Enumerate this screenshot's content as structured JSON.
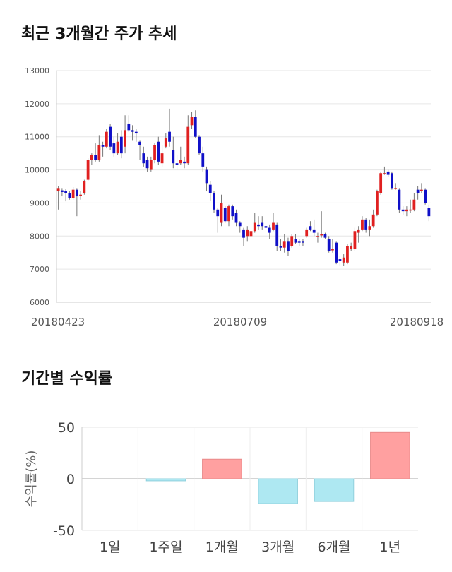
{
  "section1": {
    "title": "최근 3개월간 주가 추세"
  },
  "section2": {
    "title": "기간별 수익률"
  },
  "chart_data": [
    {
      "type": "candlestick",
      "title": "최근 3개월간 주가 추세",
      "ylim": [
        6000,
        13000
      ],
      "y_ticks": [
        "13000",
        "12000",
        "11000",
        "10000",
        "9000",
        "8000",
        "7000",
        "6000"
      ],
      "x_tick_labels": [
        "20180423",
        "20180709",
        "20180918"
      ],
      "grid": true,
      "colors": {
        "up": "#e02020",
        "down": "#1010c8",
        "wick": "#777777"
      },
      "candles": [
        {
          "o": 9350,
          "c": 9450,
          "h": 9520,
          "l": 8800
        },
        {
          "o": 9380,
          "c": 9330,
          "h": 9450,
          "l": 9200
        },
        {
          "o": 9350,
          "c": 9300,
          "h": 9420,
          "l": 9050
        },
        {
          "o": 9300,
          "c": 9150,
          "h": 9350,
          "l": 9100
        },
        {
          "o": 9150,
          "c": 9400,
          "h": 9480,
          "l": 9100
        },
        {
          "o": 9400,
          "c": 9200,
          "h": 9450,
          "l": 8600
        },
        {
          "o": 9250,
          "c": 9250,
          "h": 9350,
          "l": 9100
        },
        {
          "o": 9300,
          "c": 9650,
          "h": 9700,
          "l": 9250
        },
        {
          "o": 9700,
          "c": 10300,
          "h": 10350,
          "l": 9650
        },
        {
          "o": 10300,
          "c": 10450,
          "h": 10500,
          "l": 10150
        },
        {
          "o": 10450,
          "c": 10300,
          "h": 10800,
          "l": 10250
        },
        {
          "o": 10300,
          "c": 10750,
          "h": 11050,
          "l": 10250
        },
        {
          "o": 10750,
          "c": 10700,
          "h": 10850,
          "l": 10400
        },
        {
          "o": 10700,
          "c": 11150,
          "h": 11250,
          "l": 10650
        },
        {
          "o": 11300,
          "c": 10700,
          "h": 11400,
          "l": 10600
        },
        {
          "o": 10800,
          "c": 10500,
          "h": 11000,
          "l": 10400
        },
        {
          "o": 10500,
          "c": 10850,
          "h": 11100,
          "l": 10450
        },
        {
          "o": 11000,
          "c": 10500,
          "h": 11200,
          "l": 10350
        },
        {
          "o": 10700,
          "c": 11200,
          "h": 11650,
          "l": 10500
        },
        {
          "o": 11400,
          "c": 11200,
          "h": 11650,
          "l": 11150
        },
        {
          "o": 11200,
          "c": 11150,
          "h": 11350,
          "l": 10900
        },
        {
          "o": 11150,
          "c": 11100,
          "h": 11250,
          "l": 10850
        },
        {
          "o": 10850,
          "c": 10750,
          "h": 10900,
          "l": 10300
        },
        {
          "o": 10500,
          "c": 10200,
          "h": 10700,
          "l": 10100
        },
        {
          "o": 10300,
          "c": 10050,
          "h": 10400,
          "l": 9950
        },
        {
          "o": 10000,
          "c": 10300,
          "h": 10400,
          "l": 9950
        },
        {
          "o": 10300,
          "c": 10750,
          "h": 10800,
          "l": 10200
        },
        {
          "o": 10850,
          "c": 10250,
          "h": 11000,
          "l": 10150
        },
        {
          "o": 10200,
          "c": 10500,
          "h": 10750,
          "l": 10100
        },
        {
          "o": 10700,
          "c": 10950,
          "h": 11100,
          "l": 10650
        },
        {
          "o": 11150,
          "c": 10850,
          "h": 11850,
          "l": 10700
        },
        {
          "o": 10600,
          "c": 10200,
          "h": 11000,
          "l": 10050
        },
        {
          "o": 10200,
          "c": 10150,
          "h": 10450,
          "l": 10000
        },
        {
          "o": 10200,
          "c": 10300,
          "h": 10700,
          "l": 10150
        },
        {
          "o": 10250,
          "c": 10200,
          "h": 10400,
          "l": 10050
        },
        {
          "o": 10200,
          "c": 11300,
          "h": 11650,
          "l": 10150
        },
        {
          "o": 11350,
          "c": 11600,
          "h": 11750,
          "l": 11250
        },
        {
          "o": 11600,
          "c": 11000,
          "h": 11800,
          "l": 10950
        },
        {
          "o": 11000,
          "c": 10500,
          "h": 11050,
          "l": 10450
        },
        {
          "o": 10500,
          "c": 10100,
          "h": 10700,
          "l": 9950
        },
        {
          "o": 10000,
          "c": 9600,
          "h": 10100,
          "l": 9350
        },
        {
          "o": 9550,
          "c": 9300,
          "h": 9650,
          "l": 9050
        },
        {
          "o": 9300,
          "c": 8800,
          "h": 9350,
          "l": 8700
        },
        {
          "o": 8800,
          "c": 8600,
          "h": 8850,
          "l": 8100
        },
        {
          "o": 8400,
          "c": 9000,
          "h": 9250,
          "l": 8300
        },
        {
          "o": 8850,
          "c": 8450,
          "h": 8900,
          "l": 8400
        },
        {
          "o": 8450,
          "c": 8900,
          "h": 8950,
          "l": 8300
        },
        {
          "o": 8900,
          "c": 8600,
          "h": 8950,
          "l": 8500
        },
        {
          "o": 8700,
          "c": 8400,
          "h": 8800,
          "l": 8300
        },
        {
          "o": 8400,
          "c": 8300,
          "h": 8450,
          "l": 8100
        },
        {
          "o": 8200,
          "c": 7950,
          "h": 8250,
          "l": 7700
        },
        {
          "o": 8000,
          "c": 8200,
          "h": 8300,
          "l": 7850
        },
        {
          "o": 8000,
          "c": 8150,
          "h": 8500,
          "l": 7950
        },
        {
          "o": 8150,
          "c": 8400,
          "h": 8700,
          "l": 8100
        },
        {
          "o": 8350,
          "c": 8300,
          "h": 8600,
          "l": 8200
        },
        {
          "o": 8400,
          "c": 8300,
          "h": 8600,
          "l": 8200
        },
        {
          "o": 8300,
          "c": 8250,
          "h": 8400,
          "l": 8100
        },
        {
          "o": 8250,
          "c": 8100,
          "h": 8350,
          "l": 7900
        },
        {
          "o": 8200,
          "c": 8400,
          "h": 8700,
          "l": 8150
        },
        {
          "o": 8350,
          "c": 7700,
          "h": 8400,
          "l": 7550
        },
        {
          "o": 7700,
          "c": 7650,
          "h": 7900,
          "l": 7550
        },
        {
          "o": 7650,
          "c": 7850,
          "h": 8050,
          "l": 7500
        },
        {
          "o": 7850,
          "c": 7550,
          "h": 7950,
          "l": 7400
        },
        {
          "o": 7700,
          "c": 8000,
          "h": 8050,
          "l": 7650
        },
        {
          "o": 7900,
          "c": 7800,
          "h": 8050,
          "l": 7750
        },
        {
          "o": 7850,
          "c": 7800,
          "h": 7900,
          "l": 7700
        },
        {
          "o": 7850,
          "c": 7800,
          "h": 7900,
          "l": 7700
        },
        {
          "o": 8000,
          "c": 8200,
          "h": 8250,
          "l": 7950
        },
        {
          "o": 8300,
          "c": 8200,
          "h": 8450,
          "l": 8150
        },
        {
          "o": 8200,
          "c": 8100,
          "h": 8500,
          "l": 8000
        },
        {
          "o": 8000,
          "c": 8000,
          "h": 8100,
          "l": 7800
        },
        {
          "o": 8050,
          "c": 8050,
          "h": 8750,
          "l": 7950
        },
        {
          "o": 8050,
          "c": 7950,
          "h": 8100,
          "l": 7900
        },
        {
          "o": 7900,
          "c": 7550,
          "h": 8000,
          "l": 7500
        },
        {
          "o": 7600,
          "c": 7600,
          "h": 7900,
          "l": 7500
        },
        {
          "o": 7800,
          "c": 7200,
          "h": 7850,
          "l": 7150
        },
        {
          "o": 7300,
          "c": 7250,
          "h": 7400,
          "l": 7100
        },
        {
          "o": 7200,
          "c": 7350,
          "h": 7450,
          "l": 7100
        },
        {
          "o": 7200,
          "c": 7700,
          "h": 7750,
          "l": 7150
        },
        {
          "o": 7600,
          "c": 7700,
          "h": 7800,
          "l": 7550
        },
        {
          "o": 7600,
          "c": 8150,
          "h": 8250,
          "l": 7550
        },
        {
          "o": 8100,
          "c": 8200,
          "h": 8300,
          "l": 7800
        },
        {
          "o": 8200,
          "c": 8500,
          "h": 8600,
          "l": 8150
        },
        {
          "o": 8500,
          "c": 8200,
          "h": 8550,
          "l": 8100
        },
        {
          "o": 8200,
          "c": 8300,
          "h": 8500,
          "l": 8000
        },
        {
          "o": 8300,
          "c": 8650,
          "h": 8800,
          "l": 8250
        },
        {
          "o": 8650,
          "c": 9350,
          "h": 9400,
          "l": 8600
        },
        {
          "o": 9300,
          "c": 9900,
          "h": 9950,
          "l": 9250
        },
        {
          "o": 9900,
          "c": 9900,
          "h": 10100,
          "l": 9850
        },
        {
          "o": 9950,
          "c": 9850,
          "h": 10000,
          "l": 9800
        },
        {
          "o": 9900,
          "c": 9450,
          "h": 9950,
          "l": 9400
        },
        {
          "o": 9450,
          "c": 9450,
          "h": 9600,
          "l": 9400
        },
        {
          "o": 9400,
          "c": 8800,
          "h": 9450,
          "l": 8700
        },
        {
          "o": 8800,
          "c": 8750,
          "h": 8900,
          "l": 8650
        },
        {
          "o": 8750,
          "c": 8800,
          "h": 8900,
          "l": 8600
        },
        {
          "o": 8800,
          "c": 8800,
          "h": 9100,
          "l": 8700
        },
        {
          "o": 8800,
          "c": 9100,
          "h": 9300,
          "l": 8750
        },
        {
          "o": 9400,
          "c": 9300,
          "h": 9500,
          "l": 9100
        },
        {
          "o": 9400,
          "c": 9400,
          "h": 9600,
          "l": 9300
        },
        {
          "o": 9400,
          "c": 9000,
          "h": 9450,
          "l": 8950
        },
        {
          "o": 8850,
          "c": 8600,
          "h": 8950,
          "l": 8450
        }
      ]
    },
    {
      "type": "bar",
      "title": "기간별 수익률",
      "ylabel": "수익률(%)",
      "ylim": [
        -50,
        50
      ],
      "y_ticks": [
        "50",
        "0",
        "-50"
      ],
      "categories": [
        "1일",
        "1주일",
        "1개월",
        "3개월",
        "6개월",
        "1년"
      ],
      "values": [
        0,
        -2,
        19,
        -24,
        -22,
        45
      ],
      "colors": {
        "positive": "#ffa0a0",
        "negative": "#aee8f2"
      },
      "grid": true
    }
  ]
}
